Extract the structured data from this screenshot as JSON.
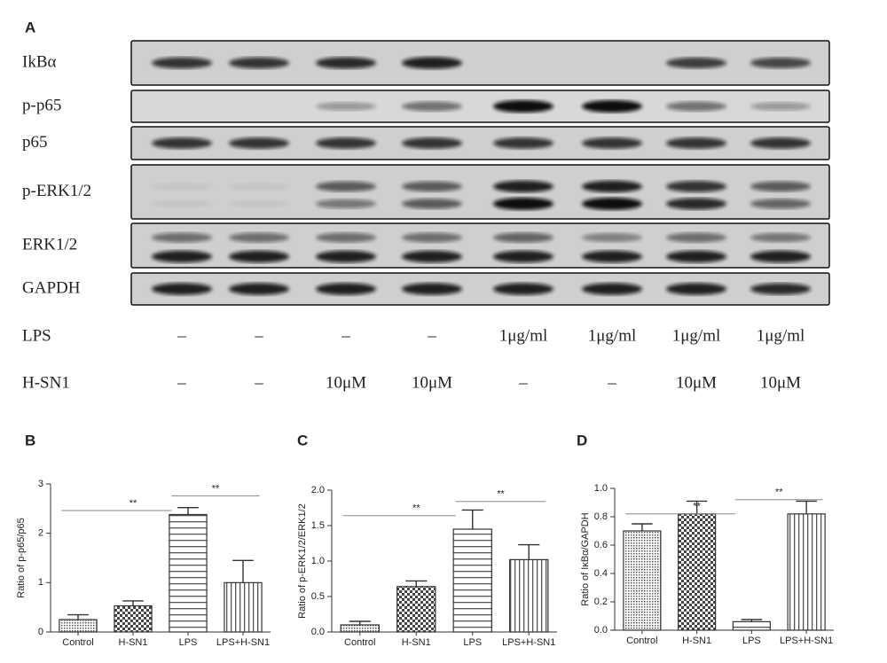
{
  "blot": {
    "panel_label": "A",
    "rows": [
      "IkBα",
      "p-p65",
      "p65",
      "p-ERK1/2",
      "ERK1/2",
      "GAPDH"
    ],
    "treatments": [
      {
        "name": "LPS",
        "lanes": [
          "–",
          "–",
          "–",
          "–",
          "1μg/ml",
          "1μg/ml",
          "1μg/ml",
          "1μg/ml"
        ]
      },
      {
        "name": "H-SN1",
        "lanes": [
          "–",
          "–",
          "10μM",
          "10μM",
          "–",
          "–",
          "10μM",
          "10μM"
        ]
      }
    ]
  },
  "chart_data": [
    {
      "type": "bar",
      "panel_label": "B",
      "y_label": "Ratio of p-p65/p65",
      "categories": [
        "Control",
        "H-SN1",
        "LPS",
        "LPS+H-SN1"
      ],
      "values": [
        0.25,
        0.53,
        2.38,
        1.0
      ],
      "errors": [
        0.1,
        0.1,
        0.14,
        0.45
      ],
      "annotations": [
        "**",
        "**"
      ],
      "color": "#333333",
      "ylim": [
        0,
        3
      ],
      "yticks": [
        0,
        1,
        2,
        3
      ]
    },
    {
      "type": "bar",
      "panel_label": "C",
      "y_label": "Ratio of p-ERK1/2/ERK1/2",
      "categories": [
        "Control",
        "H-SN1",
        "LPS",
        "LPS+H-SN1"
      ],
      "values": [
        0.1,
        0.64,
        1.45,
        1.02
      ],
      "errors": [
        0.05,
        0.08,
        0.27,
        0.21
      ],
      "annotations": [
        "**",
        "**"
      ],
      "color": "#333333",
      "ylim": [
        0,
        2
      ],
      "yticks": [
        {
          "value": 0,
          "label": "0.0"
        },
        0.5,
        {
          "value": 1,
          "label": "1.0"
        },
        1.5,
        {
          "value": 2,
          "label": "2.0"
        }
      ]
    },
    {
      "type": "bar",
      "panel_label": "D",
      "y_label": "Ratio of IκBα/GAPDH",
      "categories": [
        "Control",
        "H-SN1",
        "LPS",
        "LPS+H-SN1"
      ],
      "values": [
        0.7,
        0.82,
        0.06,
        0.82
      ],
      "errors": [
        0.05,
        0.09,
        0.015,
        0.09
      ],
      "annotations": [
        "**",
        "**"
      ],
      "color": "#333333",
      "ylim": [
        0,
        1
      ],
      "yticks": [
        {
          "value": 0,
          "label": "0.0"
        },
        0.2,
        0.4,
        0.6,
        0.8,
        {
          "value": 1,
          "label": "1.0"
        }
      ]
    }
  ]
}
